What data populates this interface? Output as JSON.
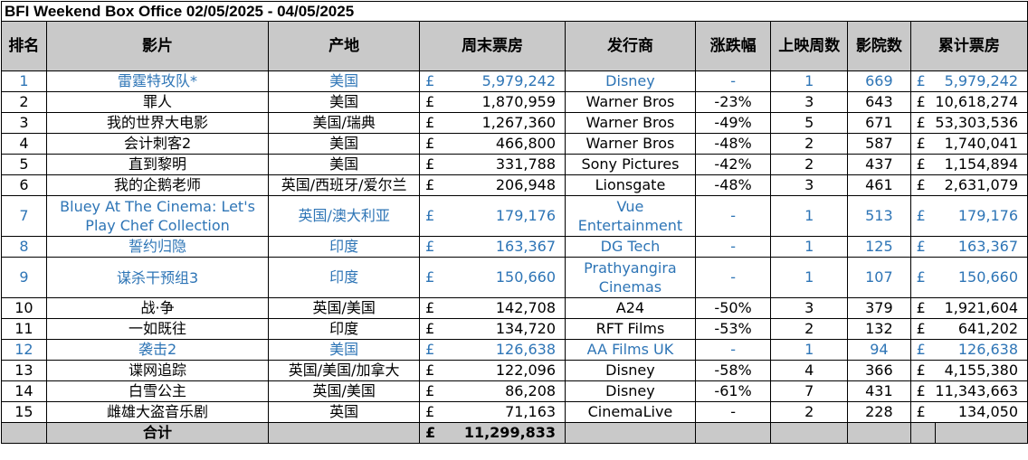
{
  "title": "BFI Weekend Box Office 02/05/2025 - 04/05/2025",
  "headers": {
    "rank": "排名",
    "film": "影片",
    "origin": "产地",
    "weekend_gross": "周末票房",
    "distributor": "发行商",
    "change": "涨跌幅",
    "weeks": "上映周数",
    "cinemas": "影院数",
    "total_gross": "累计票房"
  },
  "currency_symbol": "£",
  "colors": {
    "header_bg": "#c9c9c9",
    "new_release_text": "#2e75b6"
  },
  "rows": [
    {
      "rank": "1",
      "film": "雷霆特攻队*",
      "origin": "美国",
      "weekend": "5,979,242",
      "distributor": "Disney",
      "change": "-",
      "weeks": "1",
      "cinemas": "669",
      "total": "5,979,242",
      "is_new": true
    },
    {
      "rank": "2",
      "film": "罪人",
      "origin": "美国",
      "weekend": "1,870,959",
      "distributor": "Warner Bros",
      "change": "-23%",
      "weeks": "3",
      "cinemas": "643",
      "total": "10,618,274",
      "is_new": false
    },
    {
      "rank": "3",
      "film": "我的世界大电影",
      "origin": "美国/瑞典",
      "weekend": "1,267,360",
      "distributor": "Warner Bros",
      "change": "-49%",
      "weeks": "5",
      "cinemas": "671",
      "total": "53,303,536",
      "is_new": false
    },
    {
      "rank": "4",
      "film": "会计刺客2",
      "origin": "美国",
      "weekend": "466,800",
      "distributor": "Warner Bros",
      "change": "-48%",
      "weeks": "2",
      "cinemas": "587",
      "total": "1,740,041",
      "is_new": false
    },
    {
      "rank": "5",
      "film": "直到黎明",
      "origin": "美国",
      "weekend": "331,788",
      "distributor": "Sony Pictures",
      "change": "-42%",
      "weeks": "2",
      "cinemas": "437",
      "total": "1,154,894",
      "is_new": false
    },
    {
      "rank": "6",
      "film": "我的企鹅老师",
      "origin": "英国/西班牙/爱尔兰",
      "weekend": "206,948",
      "distributor": "Lionsgate",
      "change": "-48%",
      "weeks": "3",
      "cinemas": "461",
      "total": "2,631,079",
      "is_new": false
    },
    {
      "rank": "7",
      "film": "Bluey At The Cinema: Let's Play Chef Collection",
      "origin": "英国/澳大利亚",
      "weekend": "179,176",
      "distributor": "Vue Entertainment",
      "change": "-",
      "weeks": "1",
      "cinemas": "513",
      "total": "179,176",
      "is_new": true,
      "tall": true
    },
    {
      "rank": "8",
      "film": "誓约归隐",
      "origin": "印度",
      "weekend": "163,367",
      "distributor": "DG Tech",
      "change": "-",
      "weeks": "1",
      "cinemas": "125",
      "total": "163,367",
      "is_new": true
    },
    {
      "rank": "9",
      "film": "谋杀干预组3",
      "origin": "印度",
      "weekend": "150,660",
      "distributor": "Prathyangira Cinemas",
      "change": "-",
      "weeks": "1",
      "cinemas": "107",
      "total": "150,660",
      "is_new": true,
      "tall": true
    },
    {
      "rank": "10",
      "film": "战·争",
      "origin": "英国/美国",
      "weekend": "142,708",
      "distributor": "A24",
      "change": "-50%",
      "weeks": "3",
      "cinemas": "379",
      "total": "1,921,604",
      "is_new": false
    },
    {
      "rank": "11",
      "film": "一如既往",
      "origin": "印度",
      "weekend": "134,720",
      "distributor": "RFT Films",
      "change": "-53%",
      "weeks": "2",
      "cinemas": "132",
      "total": "641,202",
      "is_new": false
    },
    {
      "rank": "12",
      "film": "袭击2",
      "origin": "美国",
      "weekend": "126,638",
      "distributor": "AA Films UK",
      "change": "-",
      "weeks": "1",
      "cinemas": "94",
      "total": "126,638",
      "is_new": true
    },
    {
      "rank": "13",
      "film": "谍网追踪",
      "origin": "英国/美国/加拿大",
      "weekend": "122,096",
      "distributor": "Disney",
      "change": "-58%",
      "weeks": "4",
      "cinemas": "366",
      "total": "4,155,380",
      "is_new": false
    },
    {
      "rank": "14",
      "film": "白雪公主",
      "origin": "英国/美国",
      "weekend": "86,208",
      "distributor": "Disney",
      "change": "-61%",
      "weeks": "7",
      "cinemas": "431",
      "total": "11,343,663",
      "is_new": false
    },
    {
      "rank": "15",
      "film": "雌雄大盗音乐剧",
      "origin": "英国",
      "weekend": "71,163",
      "distributor": "CinemaLive",
      "change": "-",
      "weeks": "2",
      "cinemas": "228",
      "total": "134,050",
      "is_new": false
    }
  ],
  "total": {
    "label": "合计",
    "weekend": "11,299,833"
  }
}
